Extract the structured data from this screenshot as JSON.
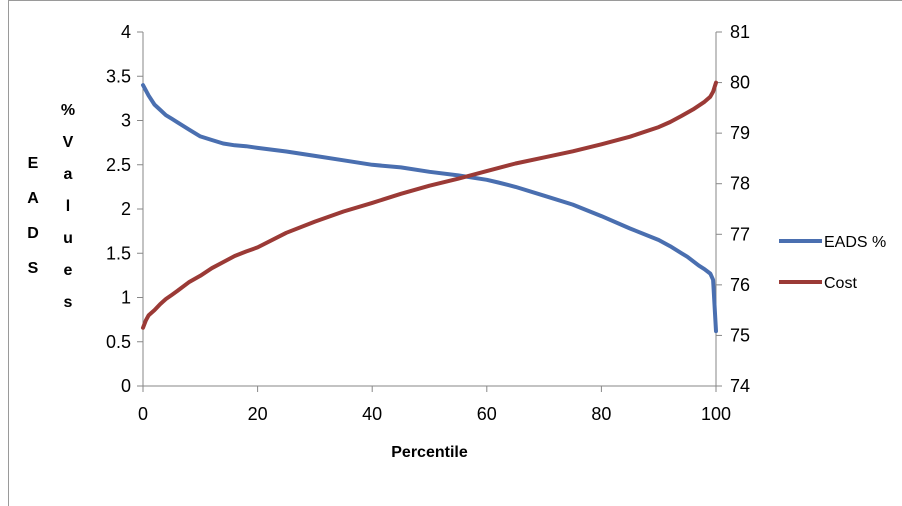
{
  "chart_data": {
    "type": "line",
    "xlabel": "Percentile",
    "ylabel_left_stacked": [
      "E",
      "A",
      "D",
      "S"
    ],
    "ylabel_right_stacked": [
      "%",
      "V",
      "a",
      "l",
      "u",
      "e",
      "s"
    ],
    "xlim": [
      0,
      100
    ],
    "ylim_left": [
      0,
      4
    ],
    "ylim_right": [
      74,
      81
    ],
    "x_ticks": [
      "0",
      "20",
      "40",
      "60",
      "80",
      "100"
    ],
    "y_left_ticks": [
      "0",
      "0.5",
      "1",
      "1.5",
      "2",
      "2.5",
      "3",
      "3.5",
      "4"
    ],
    "y_right_ticks": [
      "74",
      "75",
      "76",
      "77",
      "78",
      "79",
      "80",
      "81"
    ],
    "grid": "none",
    "legend_position": "right",
    "series": [
      {
        "name": "EADS %",
        "axis": "left",
        "color": "#4a6fb0",
        "x": [
          0,
          1,
          2,
          3,
          4,
          5,
          6,
          8,
          10,
          12,
          14,
          16,
          18,
          20,
          25,
          30,
          35,
          40,
          45,
          50,
          55,
          60,
          62,
          65,
          70,
          75,
          80,
          85,
          90,
          92,
          94,
          95,
          96,
          97,
          98,
          99,
          99.5,
          100
        ],
        "y": [
          3.4,
          3.28,
          3.18,
          3.12,
          3.06,
          3.02,
          2.98,
          2.9,
          2.82,
          2.78,
          2.74,
          2.72,
          2.71,
          2.69,
          2.65,
          2.6,
          2.55,
          2.5,
          2.47,
          2.42,
          2.38,
          2.33,
          2.3,
          2.25,
          2.15,
          2.05,
          1.92,
          1.78,
          1.65,
          1.58,
          1.5,
          1.46,
          1.41,
          1.36,
          1.32,
          1.27,
          1.2,
          0.62
        ]
      },
      {
        "name": "Cost",
        "axis": "right",
        "color": "#9b3a36",
        "x": [
          0,
          0.5,
          1,
          2,
          3,
          4,
          5,
          6,
          8,
          10,
          12,
          14,
          16,
          18,
          20,
          25,
          30,
          35,
          40,
          45,
          50,
          55,
          60,
          65,
          70,
          75,
          80,
          85,
          90,
          92,
          94,
          96,
          98,
          99,
          99.5,
          100
        ],
        "y": [
          75.15,
          75.3,
          75.4,
          75.5,
          75.62,
          75.72,
          75.8,
          75.88,
          76.05,
          76.18,
          76.33,
          76.45,
          76.57,
          76.66,
          76.74,
          77.03,
          77.25,
          77.45,
          77.62,
          77.8,
          77.96,
          78.1,
          78.25,
          78.4,
          78.52,
          78.64,
          78.78,
          78.93,
          79.12,
          79.22,
          79.34,
          79.47,
          79.62,
          79.72,
          79.82,
          80.0
        ]
      }
    ]
  }
}
